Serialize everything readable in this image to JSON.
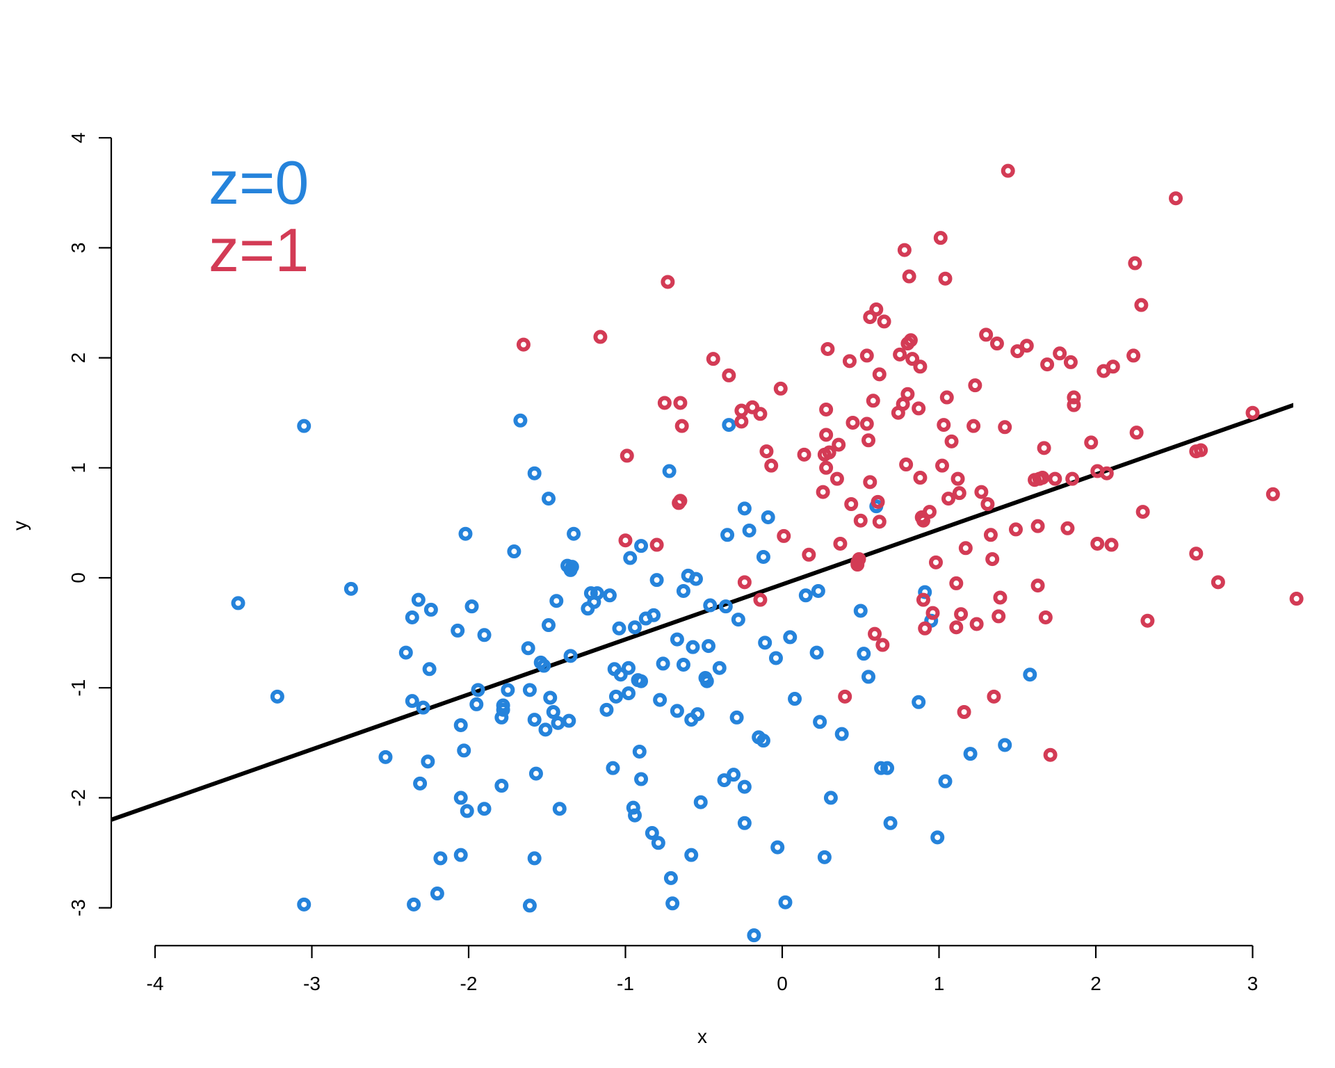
{
  "chart_data": {
    "type": "scatter",
    "xlabel": "x",
    "ylabel": "y",
    "xlim": [
      -4.3,
      3.3
    ],
    "ylim": [
      -3.3,
      4.3
    ],
    "x_ticks": [
      -4,
      -3,
      -2,
      -1,
      0,
      1,
      2,
      3
    ],
    "y_ticks": [
      -3,
      -2,
      -1,
      0,
      1,
      2,
      3,
      4
    ],
    "x_tick_labels": [
      "-4",
      "-3",
      "-2",
      "-1",
      "0",
      "1",
      "2",
      "3"
    ],
    "y_tick_labels": [
      "-3",
      "-2",
      "-1",
      "0",
      "1",
      "2",
      "3",
      "4"
    ],
    "legend": {
      "placement": "top-left",
      "entries": [
        "z=0",
        "z=1"
      ]
    },
    "colors": {
      "z0": "#2583DB",
      "z1": "#D33B55",
      "line": "#000000"
    },
    "regression_line": {
      "intercept": -0.06,
      "slope": 0.5
    },
    "series": [
      {
        "name": "z=0",
        "color": "#2583DB",
        "points": [
          [
            -3.47,
            -0.23
          ],
          [
            -3.22,
            -1.08
          ],
          [
            -3.05,
            1.38
          ],
          [
            -3.05,
            -2.97
          ],
          [
            -2.75,
            -0.1
          ],
          [
            -2.53,
            -1.63
          ],
          [
            -2.4,
            -0.68
          ],
          [
            -2.36,
            -0.36
          ],
          [
            -2.36,
            -1.12
          ],
          [
            -2.35,
            -2.97
          ],
          [
            -2.32,
            -0.2
          ],
          [
            -2.31,
            -1.87
          ],
          [
            -2.29,
            -1.18
          ],
          [
            -2.26,
            -1.67
          ],
          [
            -2.25,
            -0.83
          ],
          [
            -2.24,
            -0.29
          ],
          [
            -2.2,
            -2.87
          ],
          [
            -2.18,
            -2.55
          ],
          [
            -2.07,
            -0.48
          ],
          [
            -2.05,
            -1.34
          ],
          [
            -2.05,
            -2.0
          ],
          [
            -2.05,
            -2.52
          ],
          [
            -2.03,
            -1.57
          ],
          [
            -2.02,
            0.4
          ],
          [
            -2.01,
            -2.12
          ],
          [
            -1.98,
            -0.26
          ],
          [
            -1.95,
            -1.15
          ],
          [
            -1.94,
            -1.02
          ],
          [
            -1.9,
            -0.52
          ],
          [
            -1.9,
            -2.1
          ],
          [
            -1.79,
            -1.89
          ],
          [
            -1.79,
            -1.27
          ],
          [
            -1.78,
            -1.2
          ],
          [
            -1.78,
            -1.16
          ],
          [
            -1.75,
            -1.02
          ],
          [
            -1.71,
            0.24
          ],
          [
            -1.67,
            1.43
          ],
          [
            -1.62,
            -0.64
          ],
          [
            -1.61,
            -2.98
          ],
          [
            -1.61,
            -1.02
          ],
          [
            -1.58,
            0.95
          ],
          [
            -1.58,
            -2.55
          ],
          [
            -1.58,
            -1.29
          ],
          [
            -1.57,
            -1.78
          ],
          [
            -1.54,
            -0.77
          ],
          [
            -1.52,
            -0.8
          ],
          [
            -1.51,
            -1.38
          ],
          [
            -1.49,
            -0.43
          ],
          [
            -1.49,
            0.72
          ],
          [
            -1.48,
            -1.09
          ],
          [
            -1.46,
            -1.22
          ],
          [
            -1.44,
            -0.21
          ],
          [
            -1.43,
            -1.32
          ],
          [
            -1.42,
            -2.1
          ],
          [
            -1.37,
            0.11
          ],
          [
            -1.36,
            -1.3
          ],
          [
            -1.35,
            -0.71
          ],
          [
            -1.35,
            0.07
          ],
          [
            -1.34,
            0.1
          ],
          [
            -1.33,
            0.4
          ],
          [
            -1.24,
            -0.28
          ],
          [
            -1.22,
            -0.14
          ],
          [
            -1.2,
            -0.22
          ],
          [
            -1.18,
            -0.14
          ],
          [
            -1.12,
            -1.2
          ],
          [
            -1.1,
            -0.16
          ],
          [
            -1.08,
            -1.73
          ],
          [
            -1.07,
            -0.83
          ],
          [
            -1.06,
            -1.08
          ],
          [
            -1.04,
            -0.46
          ],
          [
            -1.03,
            -0.88
          ],
          [
            -0.98,
            -0.82
          ],
          [
            -0.98,
            -1.05
          ],
          [
            -0.97,
            0.18
          ],
          [
            -0.95,
            -2.09
          ],
          [
            -0.94,
            -2.16
          ],
          [
            -0.94,
            -0.45
          ],
          [
            -0.92,
            -0.93
          ],
          [
            -0.91,
            -1.58
          ],
          [
            -0.9,
            -0.94
          ],
          [
            -0.9,
            -1.83
          ],
          [
            -0.9,
            0.29
          ],
          [
            -0.87,
            -0.37
          ],
          [
            -0.83,
            -2.32
          ],
          [
            -0.82,
            -0.34
          ],
          [
            -0.8,
            -0.02
          ],
          [
            -0.79,
            -2.41
          ],
          [
            -0.78,
            -1.11
          ],
          [
            -0.76,
            -0.78
          ],
          [
            -0.72,
            0.97
          ],
          [
            -0.71,
            -2.73
          ],
          [
            -0.7,
            -2.96
          ],
          [
            -0.67,
            -0.56
          ],
          [
            -0.67,
            -1.21
          ],
          [
            -0.63,
            -0.12
          ],
          [
            -0.63,
            -0.79
          ],
          [
            -0.6,
            0.02
          ],
          [
            -0.58,
            -2.52
          ],
          [
            -0.58,
            -1.29
          ],
          [
            -0.57,
            -0.63
          ],
          [
            -0.55,
            -0.01
          ],
          [
            -0.54,
            -1.24
          ],
          [
            -0.52,
            -2.04
          ],
          [
            -0.49,
            -0.91
          ],
          [
            -0.48,
            -0.94
          ],
          [
            -0.47,
            -0.62
          ],
          [
            -0.46,
            -0.25
          ],
          [
            -0.4,
            -0.82
          ],
          [
            -0.37,
            -1.84
          ],
          [
            -0.36,
            -0.26
          ],
          [
            -0.35,
            0.39
          ],
          [
            -0.34,
            1.39
          ],
          [
            -0.31,
            -1.79
          ],
          [
            -0.29,
            -1.27
          ],
          [
            -0.28,
            -0.38
          ],
          [
            -0.24,
            0.63
          ],
          [
            -0.24,
            -1.9
          ],
          [
            -0.24,
            -2.23
          ],
          [
            -0.21,
            0.43
          ],
          [
            -0.18,
            -3.25
          ],
          [
            -0.15,
            -1.45
          ],
          [
            -0.12,
            -1.48
          ],
          [
            -0.12,
            0.19
          ],
          [
            -0.11,
            -0.59
          ],
          [
            -0.09,
            0.55
          ],
          [
            -0.04,
            -0.73
          ],
          [
            -0.03,
            -2.45
          ],
          [
            0.02,
            -2.95
          ],
          [
            0.05,
            -0.54
          ],
          [
            0.08,
            -1.1
          ],
          [
            0.15,
            -0.16
          ],
          [
            0.22,
            -0.68
          ],
          [
            0.23,
            -0.12
          ],
          [
            0.24,
            -1.31
          ],
          [
            0.27,
            -2.54
          ],
          [
            0.31,
            -2.0
          ],
          [
            0.38,
            -1.42
          ],
          [
            0.5,
            -0.3
          ],
          [
            0.52,
            -0.69
          ],
          [
            0.55,
            -0.9
          ],
          [
            0.6,
            0.65
          ],
          [
            0.63,
            -1.73
          ],
          [
            0.67,
            -1.73
          ],
          [
            0.69,
            -2.23
          ],
          [
            0.87,
            -1.13
          ],
          [
            0.91,
            -0.13
          ],
          [
            0.95,
            -0.39
          ],
          [
            0.99,
            -2.36
          ],
          [
            1.04,
            -1.85
          ],
          [
            1.2,
            -1.6
          ],
          [
            1.42,
            -1.52
          ],
          [
            1.58,
            -0.88
          ]
        ]
      },
      {
        "name": "z=1",
        "color": "#D33B55",
        "points": [
          [
            -1.65,
            2.12
          ],
          [
            -1.16,
            2.19
          ],
          [
            -1.0,
            0.34
          ],
          [
            -0.99,
            1.11
          ],
          [
            -0.8,
            0.3
          ],
          [
            -0.75,
            1.59
          ],
          [
            -0.73,
            2.69
          ],
          [
            -0.66,
            0.68
          ],
          [
            -0.65,
            0.7
          ],
          [
            -0.65,
            1.59
          ],
          [
            -0.64,
            1.38
          ],
          [
            -0.44,
            1.99
          ],
          [
            -0.34,
            1.84
          ],
          [
            -0.26,
            1.52
          ],
          [
            -0.26,
            1.42
          ],
          [
            -0.24,
            -0.04
          ],
          [
            -0.19,
            1.55
          ],
          [
            -0.14,
            1.49
          ],
          [
            -0.14,
            -0.2
          ],
          [
            -0.1,
            1.15
          ],
          [
            -0.07,
            1.02
          ],
          [
            -0.01,
            1.72
          ],
          [
            0.01,
            0.38
          ],
          [
            0.14,
            1.12
          ],
          [
            0.17,
            0.21
          ],
          [
            0.26,
            0.78
          ],
          [
            0.27,
            1.12
          ],
          [
            0.28,
            1.53
          ],
          [
            0.28,
            1.3
          ],
          [
            0.28,
            1.0
          ],
          [
            0.29,
            2.08
          ],
          [
            0.3,
            1.14
          ],
          [
            0.35,
            0.9
          ],
          [
            0.36,
            1.21
          ],
          [
            0.37,
            0.31
          ],
          [
            0.4,
            -1.08
          ],
          [
            0.43,
            1.97
          ],
          [
            0.44,
            0.67
          ],
          [
            0.45,
            1.41
          ],
          [
            0.48,
            0.12
          ],
          [
            0.48,
            0.14
          ],
          [
            0.49,
            0.17
          ],
          [
            0.5,
            0.52
          ],
          [
            0.54,
            1.4
          ],
          [
            0.54,
            2.02
          ],
          [
            0.55,
            1.25
          ],
          [
            0.56,
            2.37
          ],
          [
            0.56,
            0.87
          ],
          [
            0.58,
            1.61
          ],
          [
            0.59,
            -0.51
          ],
          [
            0.6,
            2.44
          ],
          [
            0.61,
            0.69
          ],
          [
            0.62,
            1.85
          ],
          [
            0.62,
            0.51
          ],
          [
            0.64,
            -0.61
          ],
          [
            0.65,
            2.33
          ],
          [
            0.74,
            1.5
          ],
          [
            0.75,
            2.03
          ],
          [
            0.77,
            1.58
          ],
          [
            0.78,
            2.98
          ],
          [
            0.79,
            1.03
          ],
          [
            0.8,
            1.67
          ],
          [
            0.8,
            2.13
          ],
          [
            0.81,
            2.74
          ],
          [
            0.82,
            2.16
          ],
          [
            0.83,
            1.99
          ],
          [
            0.87,
            1.54
          ],
          [
            0.88,
            0.91
          ],
          [
            0.88,
            1.92
          ],
          [
            0.89,
            0.55
          ],
          [
            0.9,
            -0.2
          ],
          [
            0.9,
            0.52
          ],
          [
            0.91,
            -0.46
          ],
          [
            0.94,
            0.6
          ],
          [
            0.96,
            -0.32
          ],
          [
            0.98,
            0.14
          ],
          [
            1.01,
            3.09
          ],
          [
            1.02,
            1.02
          ],
          [
            1.03,
            1.39
          ],
          [
            1.04,
            2.72
          ],
          [
            1.05,
            1.64
          ],
          [
            1.06,
            0.72
          ],
          [
            1.08,
            1.24
          ],
          [
            1.11,
            -0.05
          ],
          [
            1.11,
            -0.45
          ],
          [
            1.12,
            0.9
          ],
          [
            1.13,
            0.77
          ],
          [
            1.14,
            -0.33
          ],
          [
            1.16,
            -1.22
          ],
          [
            1.17,
            0.27
          ],
          [
            1.22,
            1.38
          ],
          [
            1.23,
            1.75
          ],
          [
            1.24,
            -0.42
          ],
          [
            1.27,
            0.78
          ],
          [
            1.3,
            2.21
          ],
          [
            1.31,
            0.67
          ],
          [
            1.33,
            0.39
          ],
          [
            1.34,
            0.17
          ],
          [
            1.35,
            -1.08
          ],
          [
            1.37,
            2.13
          ],
          [
            1.38,
            -0.35
          ],
          [
            1.39,
            -0.18
          ],
          [
            1.42,
            1.37
          ],
          [
            1.44,
            3.7
          ],
          [
            1.49,
            0.44
          ],
          [
            1.5,
            2.06
          ],
          [
            1.56,
            2.11
          ],
          [
            1.61,
            0.89
          ],
          [
            1.63,
            0.47
          ],
          [
            1.63,
            -0.07
          ],
          [
            1.64,
            0.9
          ],
          [
            1.66,
            0.91
          ],
          [
            1.67,
            1.18
          ],
          [
            1.68,
            -0.36
          ],
          [
            1.69,
            1.94
          ],
          [
            1.71,
            -1.61
          ],
          [
            1.74,
            0.9
          ],
          [
            1.77,
            2.04
          ],
          [
            1.82,
            0.45
          ],
          [
            1.84,
            1.96
          ],
          [
            1.85,
            0.9
          ],
          [
            1.86,
            1.57
          ],
          [
            1.86,
            1.64
          ],
          [
            1.97,
            1.23
          ],
          [
            2.01,
            0.97
          ],
          [
            2.01,
            0.31
          ],
          [
            2.05,
            1.88
          ],
          [
            2.07,
            0.95
          ],
          [
            2.1,
            0.3
          ],
          [
            2.11,
            1.92
          ],
          [
            2.24,
            2.02
          ],
          [
            2.25,
            2.86
          ],
          [
            2.26,
            1.32
          ],
          [
            2.29,
            2.48
          ],
          [
            2.3,
            0.6
          ],
          [
            2.33,
            -0.39
          ],
          [
            2.51,
            3.45
          ],
          [
            2.64,
            1.15
          ],
          [
            2.64,
            0.22
          ],
          [
            2.67,
            1.16
          ],
          [
            2.78,
            -0.04
          ],
          [
            3.0,
            1.5
          ],
          [
            3.13,
            0.76
          ],
          [
            3.28,
            -0.19
          ]
        ]
      }
    ]
  }
}
